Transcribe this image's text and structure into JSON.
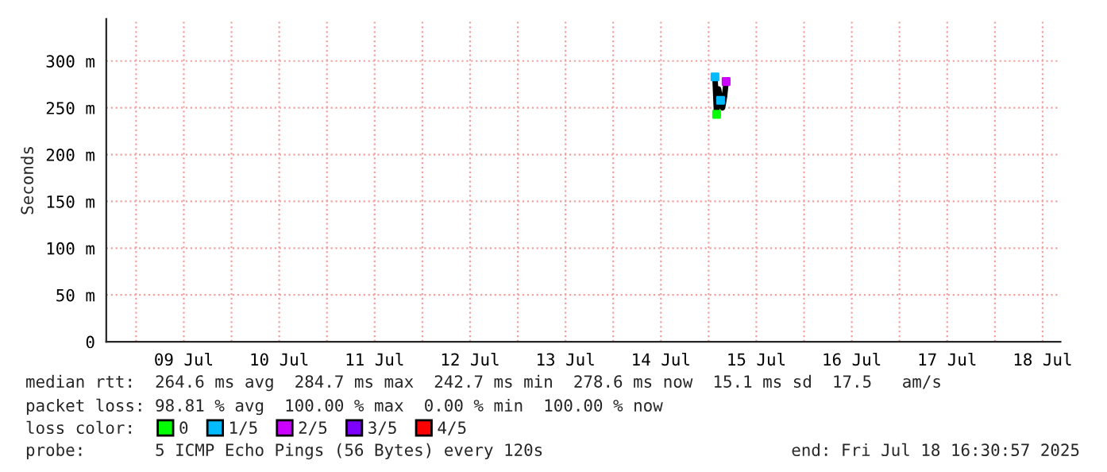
{
  "chart_data": {
    "type": "line",
    "ylabel": "Seconds",
    "legend_title": "loss color:",
    "legend": "bottom",
    "grid": true,
    "xlim": [
      "2025-07-08T16:30",
      "2025-07-18T16:30"
    ],
    "xticks": [
      {
        "value": "2025-07-09T00:00",
        "label": null
      },
      {
        "value": "2025-07-09T12:00",
        "label": "09 Jul"
      },
      {
        "value": "2025-07-10T00:00",
        "label": null
      },
      {
        "value": "2025-07-10T12:00",
        "label": "10 Jul"
      },
      {
        "value": "2025-07-11T00:00",
        "label": null
      },
      {
        "value": "2025-07-11T12:00",
        "label": "11 Jul"
      },
      {
        "value": "2025-07-12T00:00",
        "label": null
      },
      {
        "value": "2025-07-12T12:00",
        "label": "12 Jul"
      },
      {
        "value": "2025-07-13T00:00",
        "label": null
      },
      {
        "value": "2025-07-13T12:00",
        "label": "13 Jul"
      },
      {
        "value": "2025-07-14T00:00",
        "label": null
      },
      {
        "value": "2025-07-14T12:00",
        "label": "14 Jul"
      },
      {
        "value": "2025-07-15T00:00",
        "label": null
      },
      {
        "value": "2025-07-15T12:00",
        "label": "15 Jul"
      },
      {
        "value": "2025-07-16T00:00",
        "label": null
      },
      {
        "value": "2025-07-16T12:00",
        "label": "16 Jul"
      },
      {
        "value": "2025-07-17T00:00",
        "label": null
      },
      {
        "value": "2025-07-17T12:00",
        "label": "17 Jul"
      },
      {
        "value": "2025-07-18T00:00",
        "label": null
      },
      {
        "value": "2025-07-18T12:00",
        "label": "18 Jul"
      }
    ],
    "ylim": [
      0,
      345
    ],
    "yticks": [
      {
        "value": 0,
        "label": "0"
      },
      {
        "value": 50,
        "label": "50 m"
      },
      {
        "value": 100,
        "label": "100 m"
      },
      {
        "value": 150,
        "label": "150 m"
      },
      {
        "value": 200,
        "label": "200 m"
      },
      {
        "value": 250,
        "label": "250 m"
      },
      {
        "value": 300,
        "label": "300 m"
      }
    ],
    "series": [
      {
        "color": "#000000",
        "marker": "none",
        "x": [
          "2025-07-15T01:36",
          "2025-07-15T02:00",
          "2025-07-15T02:30",
          "2025-07-15T03:00",
          "2025-07-15T03:30",
          "2025-07-15T04:00",
          "2025-07-15T04:24"
        ],
        "values": [
          283,
          243,
          270,
          258,
          250,
          262,
          278
        ]
      },
      {
        "type": "scatter",
        "name": "0",
        "color": "#00ff00",
        "marker": "square",
        "x": [
          "2025-07-15T02:00"
        ],
        "values": [
          243
        ]
      },
      {
        "type": "scatter",
        "name": "1/5",
        "color": "#00bbff",
        "marker": "square",
        "x": [
          "2025-07-15T01:36",
          "2025-07-15T03:00"
        ],
        "values": [
          283,
          258
        ]
      },
      {
        "type": "scatter",
        "name": "2/5",
        "color": "#cc00ff",
        "marker": "square",
        "x": [
          "2025-07-15T04:24"
        ],
        "values": [
          278
        ]
      },
      {
        "type": "scatter",
        "name": "3/5",
        "color": "#7e00ff",
        "marker": "square"
      },
      {
        "type": "scatter",
        "name": "4/5",
        "color": "#ff0000",
        "marker": "square"
      }
    ],
    "annotations": [
      "median rtt:  264.6 ms avg  284.7 ms max  242.7 ms min  278.6 ms now  15.1 ms sd  17.5   am/s",
      "packet loss: 98.81 % avg  100.00 % max  0.00 % min  100.00 % now",
      "probe:       5 ICMP Echo Pings (56 Bytes) every 120s",
      "end: Fri Jul 18 16:30:57 2025"
    ]
  }
}
